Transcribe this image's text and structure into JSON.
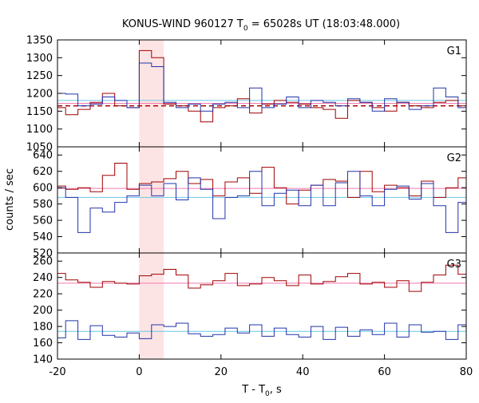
{
  "chart_data": {
    "type": "line",
    "title": "KONUS-WIND 960127 T",
    "title_sub": "0",
    "title_suffix": " = 65028s UT (18:03:48.000)",
    "xlabel": "T - T",
    "xlabel_sub": "0",
    "xlabel_suffix": ", s",
    "ylabel": "counts / sec",
    "xlim": [
      -20,
      80
    ],
    "x_ticks": [
      "-20",
      "0",
      "20",
      "40",
      "60",
      "80"
    ],
    "highlight": {
      "x_from": 0,
      "x_to": 6,
      "color": "#fde4e4"
    },
    "colors": {
      "red": "#a00000",
      "blue": "#2233aa",
      "cyan": "#6ac6e6",
      "pink": "#f07ab0",
      "dashed": "#a00000"
    },
    "panels": [
      {
        "label": "G1",
        "ylim": [
          1050,
          1350
        ],
        "y_ticks": [
          "1050",
          "1100",
          "1150",
          "1200",
          "1250",
          "1300",
          "1350"
        ],
        "edges": [
          -21,
          -18,
          -15,
          -12,
          -9,
          -6,
          -3,
          0,
          3,
          6,
          9,
          12,
          15,
          18,
          21,
          24,
          27,
          30,
          33,
          36,
          39,
          42,
          45,
          48,
          51,
          54,
          57,
          60,
          63,
          66,
          69,
          72,
          75,
          78,
          81
        ],
        "series": [
          {
            "name": "red",
            "values": [
              1160,
              1140,
              1155,
              1175,
              1200,
              1165,
              1160,
              1320,
              1300,
              1170,
              1165,
              1150,
              1120,
              1160,
              1165,
              1185,
              1145,
              1170,
              1180,
              1175,
              1170,
              1160,
              1155,
              1130,
              1180,
              1175,
              1160,
              1150,
              1175,
              1165,
              1160,
              1175,
              1180,
              1165
            ]
          },
          {
            "name": "blue",
            "values": [
              1200,
              1198,
              1165,
              1170,
              1190,
              1180,
              1160,
              1285,
              1275,
              1175,
              1160,
              1170,
              1150,
              1170,
              1175,
              1160,
              1215,
              1160,
              1170,
              1190,
              1160,
              1180,
              1175,
              1165,
              1185,
              1175,
              1150,
              1185,
              1175,
              1155,
              1165,
              1215,
              1190,
              1160
            ]
          }
        ],
        "lines": [
          {
            "color": "cyan",
            "value": 1180
          },
          {
            "color": "pink",
            "value": 1172
          },
          {
            "color": "dashed",
            "value": 1165,
            "dashed": true
          }
        ]
      },
      {
        "label": "G2",
        "ylim": [
          520,
          650
        ],
        "y_ticks": [
          "520",
          "540",
          "560",
          "580",
          "600",
          "620",
          "640"
        ],
        "edges": [
          -21,
          -18,
          -15,
          -12,
          -9,
          -6,
          -3,
          0,
          3,
          6,
          9,
          12,
          15,
          18,
          21,
          24,
          27,
          30,
          33,
          36,
          39,
          42,
          45,
          48,
          51,
          54,
          57,
          60,
          63,
          66,
          69,
          72,
          75,
          78,
          81
        ],
        "series": [
          {
            "name": "red",
            "values": [
              602,
              598,
              600,
              595,
              615,
              630,
              598,
              605,
              607,
              611,
              620,
              605,
              610,
              590,
              607,
              612,
              593,
              625,
              600,
              580,
              597,
              603,
              610,
              608,
              588,
              620,
              595,
              603,
              600,
              590,
              608,
              588,
              600,
              612
            ]
          },
          {
            "name": "blue",
            "values": [
              600,
              588,
              545,
              575,
              570,
              582,
              590,
              603,
              590,
              605,
              585,
              612,
              598,
              562,
              588,
              590,
              620,
              578,
              593,
              597,
              578,
              603,
              578,
              606,
              620,
              590,
              578,
              598,
              602,
              586,
              605,
              578,
              545,
              582
            ]
          }
        ],
        "lines": [
          {
            "color": "cyan",
            "value": 588
          },
          {
            "color": "pink",
            "value": 599
          }
        ]
      },
      {
        "label": "G3",
        "ylim": [
          140,
          270
        ],
        "y_ticks": [
          "140",
          "160",
          "180",
          "200",
          "220",
          "240",
          "260"
        ],
        "edges": [
          -21,
          -18,
          -15,
          -12,
          -9,
          -6,
          -3,
          0,
          3,
          6,
          9,
          12,
          15,
          18,
          21,
          24,
          27,
          30,
          33,
          36,
          39,
          42,
          45,
          48,
          51,
          54,
          57,
          60,
          63,
          66,
          69,
          72,
          75,
          78,
          81
        ],
        "series": [
          {
            "name": "red",
            "values": [
              245,
              237,
              234,
              228,
              235,
              233,
              232,
              242,
              244,
              250,
              243,
              227,
              231,
              236,
              245,
              230,
              232,
              240,
              236,
              230,
              243,
              232,
              235,
              241,
              245,
              232,
              234,
              228,
              236,
              223,
              234,
              243,
              255,
              244
            ]
          },
          {
            "name": "blue",
            "values": [
              166,
              187,
              164,
              181,
              169,
              167,
              172,
              165,
              182,
              180,
              184,
              171,
              168,
              170,
              178,
              172,
              182,
              168,
              178,
              170,
              167,
              180,
              164,
              179,
              168,
              176,
              170,
              184,
              167,
              182,
              173,
              174,
              164,
              182
            ]
          }
        ],
        "lines": [
          {
            "color": "cyan",
            "value": 174
          },
          {
            "color": "pink",
            "value": 233
          }
        ]
      }
    ]
  }
}
